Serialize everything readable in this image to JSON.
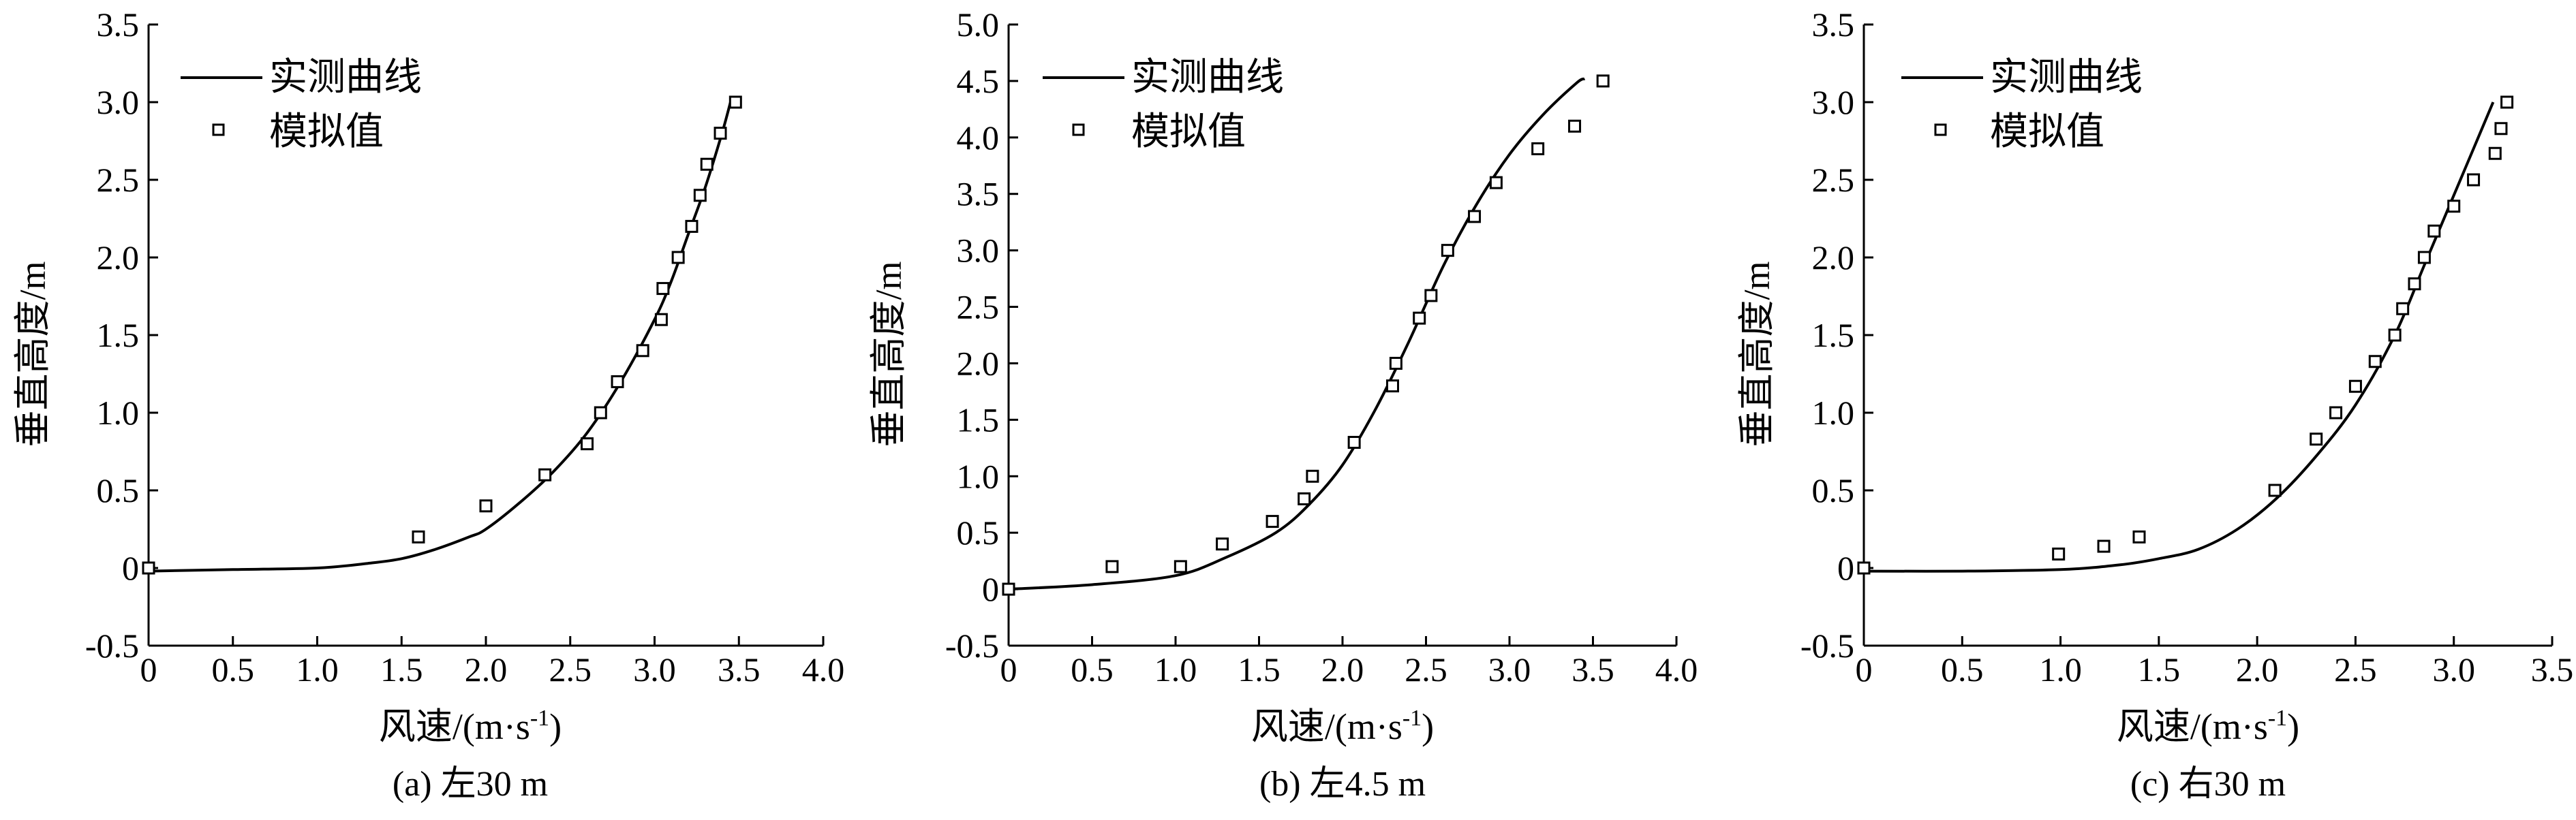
{
  "figure": {
    "panels": [
      {
        "caption": "(a) 左30 m",
        "xlabel": "风速/(m·s",
        "xlabel_sup": "-1",
        "xlabel_tail": ")",
        "ylabel": "垂直高度/m",
        "legend": {
          "line": "实测曲线",
          "marker": "模拟值"
        }
      },
      {
        "caption": "(b) 左4.5 m",
        "xlabel": "风速/(m·s",
        "xlabel_sup": "-1",
        "xlabel_tail": ")",
        "ylabel": "垂直高度/m",
        "legend": {
          "line": "实测曲线",
          "marker": "模拟值"
        }
      },
      {
        "caption": "(c) 右30 m",
        "xlabel": "风速/(m·s",
        "xlabel_sup": "-1",
        "xlabel_tail": ")",
        "ylabel": "垂直高度/m",
        "legend": {
          "line": "实测曲线",
          "marker": "模拟值"
        }
      }
    ]
  },
  "chart_data": [
    {
      "type": "line",
      "xlim": [
        0,
        4.0
      ],
      "ylim": [
        -0.5,
        3.5
      ],
      "xticks": [
        "0",
        "0.5",
        "1.0",
        "1.5",
        "2.0",
        "2.5",
        "3.0",
        "3.5",
        "4.0"
      ],
      "yticks": [
        "-0.5",
        "0",
        "0.5",
        "1.0",
        "1.5",
        "2.0",
        "2.5",
        "3.0",
        "3.5"
      ],
      "legend_position": "top-left",
      "grid": false,
      "series": [
        {
          "name": "实测曲线",
          "style": "line",
          "x": [
            0,
            0.5,
            1.0,
            1.3,
            1.5,
            1.7,
            1.9,
            2.0,
            2.2,
            2.4,
            2.6,
            2.8,
            3.0,
            3.1,
            3.2,
            3.3,
            3.4,
            3.45
          ],
          "y": [
            -0.02,
            -0.01,
            0.0,
            0.03,
            0.06,
            0.12,
            0.2,
            0.25,
            0.42,
            0.62,
            0.87,
            1.2,
            1.6,
            1.85,
            2.15,
            2.45,
            2.8,
            3.0
          ]
        },
        {
          "name": "模拟值",
          "style": "square-marker",
          "x": [
            0,
            1.6,
            2.0,
            2.35,
            2.6,
            2.68,
            2.78,
            2.93,
            3.04,
            3.05,
            3.14,
            3.22,
            3.27,
            3.31,
            3.39,
            3.48
          ],
          "y": [
            0,
            0.2,
            0.4,
            0.6,
            0.8,
            1.0,
            1.2,
            1.4,
            1.6,
            1.8,
            2.0,
            2.2,
            2.4,
            2.6,
            2.8,
            3.0
          ]
        }
      ]
    },
    {
      "type": "line",
      "xlim": [
        0,
        4.0
      ],
      "ylim": [
        -0.5,
        5.0
      ],
      "xticks": [
        "0",
        "0.5",
        "1.0",
        "1.5",
        "2.0",
        "2.5",
        "3.0",
        "3.5",
        "4.0"
      ],
      "yticks": [
        "-0.5",
        "0",
        "0.5",
        "1.0",
        "1.5",
        "2.0",
        "2.5",
        "3.0",
        "3.5",
        "4.0",
        "4.5",
        "5.0"
      ],
      "legend_position": "top-left",
      "grid": false,
      "series": [
        {
          "name": "实测曲线",
          "style": "line",
          "x": [
            0,
            0.5,
            1.0,
            1.3,
            1.6,
            1.8,
            2.0,
            2.2,
            2.4,
            2.6,
            2.8,
            3.0,
            3.2,
            3.4,
            3.45
          ],
          "y": [
            0,
            0.04,
            0.12,
            0.28,
            0.5,
            0.75,
            1.1,
            1.6,
            2.2,
            2.85,
            3.4,
            3.85,
            4.2,
            4.48,
            4.52
          ]
        },
        {
          "name": "模拟值",
          "style": "square-marker",
          "x": [
            0,
            0.62,
            1.03,
            1.28,
            1.58,
            1.77,
            1.82,
            2.07,
            2.3,
            2.32,
            2.46,
            2.53,
            2.63,
            2.79,
            2.92,
            3.17,
            3.39,
            3.56
          ],
          "y": [
            0,
            0.2,
            0.2,
            0.4,
            0.6,
            0.8,
            1.0,
            1.3,
            1.8,
            2.0,
            2.4,
            2.6,
            3.0,
            3.3,
            3.6,
            3.9,
            4.1,
            4.5
          ]
        }
      ]
    },
    {
      "type": "line",
      "xlim": [
        0,
        3.5
      ],
      "ylim": [
        -0.5,
        3.5
      ],
      "xticks": [
        "0",
        "0.5",
        "1.0",
        "1.5",
        "2.0",
        "2.5",
        "3.0",
        "3.5"
      ],
      "yticks": [
        "-0.5",
        "0",
        "0.5",
        "1.0",
        "1.5",
        "2.0",
        "2.5",
        "3.0",
        "3.5"
      ],
      "legend_position": "top-left",
      "grid": false,
      "series": [
        {
          "name": "实测曲线",
          "style": "line",
          "x": [
            0,
            0.5,
            1.0,
            1.3,
            1.5,
            1.7,
            1.9,
            2.1,
            2.3,
            2.5,
            2.7,
            2.85,
            3.0,
            3.1,
            3.2
          ],
          "y": [
            -0.02,
            -0.02,
            -0.01,
            0.02,
            0.06,
            0.12,
            0.25,
            0.45,
            0.72,
            1.05,
            1.5,
            1.95,
            2.4,
            2.7,
            3.0
          ]
        },
        {
          "name": "模拟值",
          "style": "square-marker",
          "x": [
            0,
            0.99,
            1.22,
            1.4,
            2.09,
            2.3,
            2.4,
            2.5,
            2.6,
            2.7,
            2.74,
            2.8,
            2.85,
            2.9,
            3.0,
            3.1,
            3.21,
            3.24,
            3.27
          ],
          "y": [
            0,
            0.09,
            0.14,
            0.2,
            0.5,
            0.83,
            1.0,
            1.17,
            1.33,
            1.5,
            1.67,
            1.83,
            2.0,
            2.17,
            2.33,
            2.5,
            2.67,
            2.83,
            3.0
          ]
        }
      ]
    }
  ]
}
